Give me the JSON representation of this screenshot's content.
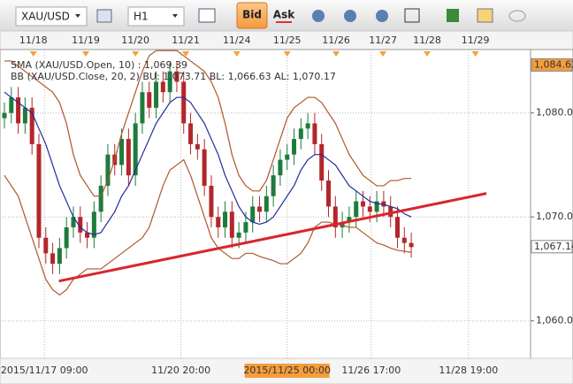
{
  "toolbar": {
    "symbol": "XAU/USD",
    "timeframe": "H1",
    "bid": "Bid",
    "ask": "Ask"
  },
  "chart_data": {
    "type": "candlestick",
    "legend": [
      "SMA (XAU/USD.Open, 10) : 1,069.39",
      "BB (XAU/USD.Close, 20, 2) BU: 1,073.71   BL: 1,066.63   AL: 1,070.17"
    ],
    "xlim": [
      -0.64,
      76.3
    ],
    "ylim": [
      1056.4,
      1086.1
    ],
    "yticks": [
      {
        "value": 1060,
        "label": "1,060.00"
      },
      {
        "value": 1070,
        "label": "1,070.00"
      },
      {
        "value": 1080,
        "label": "1,080.00"
      }
    ],
    "price_tags": [
      {
        "value": 1084.62,
        "label": "1,084.62"
      },
      {
        "value": 1067.14,
        "label": "1,067.14"
      }
    ],
    "top_ticks": [
      {
        "value": 4.2,
        "label": "11/18"
      },
      {
        "value": 11.8,
        "label": "11/19"
      },
      {
        "value": 19.0,
        "label": "11/20"
      },
      {
        "value": 26.3,
        "label": "11/21"
      },
      {
        "value": 33.7,
        "label": "11/24"
      },
      {
        "value": 41.0,
        "label": "11/25"
      },
      {
        "value": 48.1,
        "label": "11/26"
      },
      {
        "value": 54.9,
        "label": "11/27"
      },
      {
        "value": 61.3,
        "label": "11/28"
      },
      {
        "value": 68.3,
        "label": "11/29"
      }
    ],
    "xticks": [
      {
        "value": 5.8,
        "label": "2015/11/17 09:00"
      },
      {
        "value": 25.6,
        "label": "11/20 20:00"
      },
      {
        "value": 41.0,
        "label": "2015/11/25 00:00"
      },
      {
        "value": 53.2,
        "label": "11/26 17:00"
      },
      {
        "value": 67.3,
        "label": "11/28 19:00"
      }
    ],
    "highlight_xtick": 2,
    "grid": true,
    "up_color": "#1e7b3c",
    "down_color": "#b3262a",
    "open": [
      1079.5,
      1080,
      1081.5,
      1079,
      1080.5,
      1077,
      1068,
      1066.5,
      1065.5,
      1067,
      1069,
      1070,
      1068.5,
      1068,
      1070.5,
      1073,
      1076,
      1075,
      1077.5,
      1074,
      1079,
      1082,
      1080.5,
      1083,
      1082,
      1084,
      1083,
      1079,
      1077,
      1076.5,
      1073,
      1070,
      1069,
      1070.5,
      1068,
      1068.5,
      1069.5,
      1071,
      1070.5,
      1072,
      1074,
      1075.5,
      1076,
      1077.5,
      1078.5,
      1079,
      1077,
      1073.5,
      1071,
      1069,
      1069.5,
      1070,
      1071.5,
      1071,
      1070.5,
      1071.5,
      1071,
      1070,
      1068,
      1067.5
    ],
    "high": [
      1081,
      1082.5,
      1082.5,
      1081.5,
      1081.5,
      1078,
      1069,
      1067.5,
      1068,
      1070,
      1071,
      1071,
      1069.5,
      1071.5,
      1074,
      1077,
      1077,
      1078.5,
      1078.5,
      1080,
      1083,
      1083,
      1084,
      1084,
      1085,
      1085,
      1084,
      1080,
      1078,
      1077.5,
      1074,
      1071,
      1071.5,
      1071.5,
      1069.5,
      1070.5,
      1072,
      1072,
      1073,
      1075,
      1076.5,
      1077,
      1078.5,
      1079.5,
      1080,
      1080,
      1078,
      1074.5,
      1072,
      1070.5,
      1071,
      1072.5,
      1072.5,
      1072,
      1072.5,
      1072.5,
      1072,
      1071,
      1069,
      1068.5
    ],
    "low": [
      1078.5,
      1079,
      1078,
      1078,
      1076,
      1067,
      1065.5,
      1064.5,
      1064.5,
      1066,
      1068,
      1067.5,
      1067,
      1067,
      1069.5,
      1072,
      1074,
      1074,
      1073,
      1073,
      1078,
      1079.5,
      1079.5,
      1081,
      1081,
      1082,
      1078,
      1076,
      1075.5,
      1072,
      1069,
      1068,
      1068,
      1067,
      1067,
      1067.5,
      1068.5,
      1069.5,
      1069.5,
      1071,
      1073,
      1074.5,
      1075,
      1076.5,
      1077.5,
      1076,
      1072.5,
      1070,
      1068,
      1068,
      1068.5,
      1069,
      1070,
      1069.5,
      1069.5,
      1070,
      1069,
      1067,
      1066.5,
      1066.1
    ],
    "close": [
      1080,
      1081.5,
      1079,
      1080.5,
      1077,
      1068,
      1066.5,
      1065.5,
      1067,
      1069,
      1070,
      1068.5,
      1068,
      1070.5,
      1073,
      1076,
      1075,
      1077.5,
      1074,
      1079,
      1082,
      1080.5,
      1083,
      1082,
      1084,
      1083,
      1079,
      1077,
      1076.5,
      1073,
      1070,
      1069,
      1070.5,
      1068,
      1068.5,
      1069.5,
      1071,
      1070.5,
      1072,
      1074,
      1075.5,
      1076,
      1077.5,
      1078.5,
      1079,
      1077,
      1073.5,
      1071,
      1069,
      1069.5,
      1070,
      1071.5,
      1071,
      1070.5,
      1071.5,
      1071,
      1070,
      1068,
      1067.5,
      1067.1
    ],
    "series": [
      {
        "color": "#1f2a9c",
        "values": [
          1082,
          1081.5,
          1081,
          1080.5,
          1080,
          1078.5,
          1077,
          1075,
          1073,
          1071.5,
          1070,
          1069,
          1068.5,
          1068.3,
          1068.5,
          1069.5,
          1070.5,
          1072,
          1073,
          1074.5,
          1076,
          1077.5,
          1079,
          1080,
          1081,
          1081.5,
          1081.5,
          1081,
          1080,
          1079,
          1077.5,
          1076,
          1074,
          1072.5,
          1071,
          1070,
          1069.5,
          1069.3,
          1069.5,
          1070,
          1071,
          1072,
          1073,
          1074.5,
          1075.5,
          1076,
          1076,
          1075.5,
          1075,
          1074,
          1073,
          1072.5,
          1072,
          1071.5,
          1071.3,
          1071.2,
          1071,
          1070.8,
          1070.3,
          1070
        ]
      },
      {
        "color": "#b0562a",
        "values": [
          1085,
          1085,
          1084.5,
          1084,
          1083.5,
          1083,
          1082.5,
          1082,
          1081,
          1079,
          1076,
          1074,
          1073,
          1072,
          1072,
          1073.5,
          1075.5,
          1078,
          1080,
          1082,
          1084,
          1085.5,
          1086,
          1086,
          1086,
          1086,
          1085.5,
          1085,
          1084.5,
          1084,
          1083,
          1081.5,
          1079,
          1076,
          1074,
          1073,
          1072.5,
          1072.5,
          1073.5,
          1075.5,
          1077.5,
          1079.5,
          1080.5,
          1081,
          1081.5,
          1081.5,
          1081,
          1080,
          1079,
          1077.5,
          1076,
          1075,
          1074,
          1073.5,
          1073,
          1073,
          1073.5,
          1073.5,
          1073.7,
          1073.7
        ]
      },
      {
        "color": "#b0562a",
        "values": [
          1074,
          1073,
          1072,
          1070,
          1068,
          1066,
          1064,
          1063,
          1062.5,
          1063,
          1064,
          1064.5,
          1065,
          1065,
          1065,
          1065.5,
          1066,
          1066.5,
          1067,
          1067.5,
          1068,
          1069,
          1071,
          1073,
          1074.5,
          1075,
          1075.5,
          1074,
          1072,
          1070,
          1068,
          1067,
          1066.5,
          1066,
          1066,
          1066.5,
          1066.5,
          1066.2,
          1066,
          1065.8,
          1065.5,
          1065.5,
          1066,
          1066.5,
          1067.5,
          1069,
          1069.5,
          1069.5,
          1069.3,
          1069.2,
          1069,
          1069,
          1068.5,
          1068,
          1067.5,
          1067.3,
          1067,
          1066.8,
          1066.7,
          1066.6
        ]
      }
    ],
    "trendline": {
      "color": "#d8262e",
      "x": [
        7.9,
        69.9
      ],
      "y": [
        1063.83,
        1072.26
      ]
    }
  }
}
